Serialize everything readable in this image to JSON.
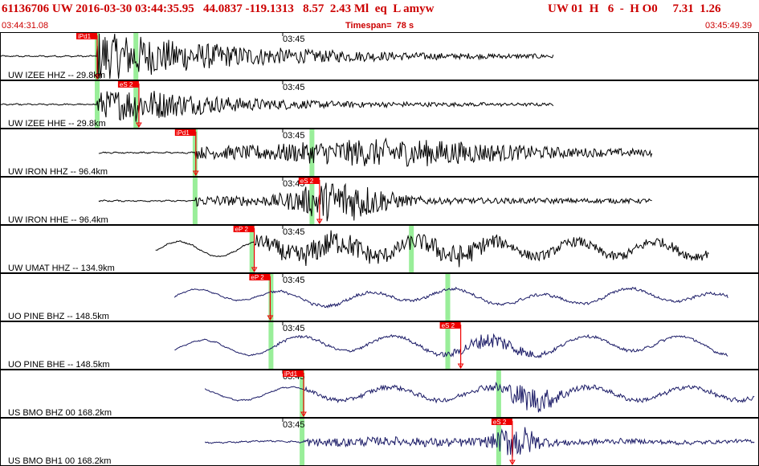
{
  "header": {
    "title": "61136706 UW 2016-03-30 03:44:35.95   44.0837 -119.1313   8.57  2.43 Ml  eq  L amyw",
    "right_info": "UW 01  H   6  -  H O0     7.31  1.26",
    "time_start": "03:44:31.08",
    "timespan": "Timespan=  78 s",
    "time_end": "03:45:49.39"
  },
  "colors": {
    "header_red": "#cc0000",
    "pick_red": "#ee0000",
    "marker_green": "#99ee99",
    "trace_black": "#000000",
    "trace_navy": "#1a1a66"
  },
  "time_tick_label": "03:45",
  "panels": [
    {
      "label": "UW IZEE HHZ -- 29.8km",
      "trace_color": "black",
      "start": 0.0,
      "end": 0.73,
      "onset": 0.128,
      "wave": "local_p",
      "picks": [
        {
          "text": "iPd1",
          "t": 0.128
        }
      ],
      "green_markers": [
        0.128,
        0.179
      ]
    },
    {
      "label": "UW IZEE HHE -- 29.8km",
      "trace_color": "black",
      "start": 0.0,
      "end": 0.73,
      "onset": 0.128,
      "wave": "local_s",
      "picks": [
        {
          "text": "eS 2",
          "t": 0.183
        }
      ],
      "green_markers": [
        0.128,
        0.179
      ]
    },
    {
      "label": "UW IRON HHZ -- 96.4km",
      "trace_color": "black",
      "start": 0.13,
      "end": 0.86,
      "onset": 0.258,
      "wave": "mid",
      "picks": [
        {
          "text": "iPd1",
          "t": 0.258
        }
      ],
      "green_markers": [
        0.257,
        0.411
      ]
    },
    {
      "label": "UW IRON HHE -- 96.4km",
      "trace_color": "black",
      "start": 0.13,
      "end": 0.86,
      "onset": 0.258,
      "wave": "mid_s",
      "picks": [
        {
          "text": "eS 2",
          "t": 0.421
        }
      ],
      "green_markers": [
        0.257,
        0.411
      ]
    },
    {
      "label": "UW UMAT HHZ -- 134.9km",
      "trace_color": "black",
      "start": 0.205,
      "end": 0.935,
      "onset": 0.335,
      "wave": "umat",
      "picks": [
        {
          "text": "eP 2",
          "t": 0.335
        }
      ],
      "green_markers": [
        0.332,
        0.542
      ]
    },
    {
      "label": "UO PINE BHZ -- 148.5km",
      "trace_color": "navy",
      "start": 0.23,
      "end": 0.96,
      "onset": 0.356,
      "wave": "pine_z",
      "picks": [
        {
          "text": "eP 2",
          "t": 0.356
        }
      ],
      "green_markers": [
        0.357,
        0.59
      ]
    },
    {
      "label": "UO PINE BHE -- 148.5km",
      "trace_color": "navy",
      "start": 0.23,
      "end": 0.96,
      "onset": 0.356,
      "wave": "pine_e",
      "picks": [
        {
          "text": "eS 2",
          "t": 0.607
        }
      ],
      "green_markers": [
        0.357,
        0.59
      ]
    },
    {
      "label": "US BMO BHZ 00 168.2km",
      "trace_color": "navy",
      "start": 0.27,
      "end": 0.995,
      "onset": 0.4,
      "wave": "bmo_z",
      "picks": [
        {
          "text": "iPd1",
          "t": 0.4
        }
      ],
      "green_markers": [
        0.398,
        0.657
      ]
    },
    {
      "label": "US BMO BH1 00 168.2km",
      "trace_color": "navy",
      "start": 0.27,
      "end": 0.995,
      "onset": 0.4,
      "wave": "bmo_e",
      "picks": [
        {
          "text": "eS 2",
          "t": 0.675
        }
      ],
      "green_markers": [
        0.398,
        0.657
      ]
    }
  ]
}
